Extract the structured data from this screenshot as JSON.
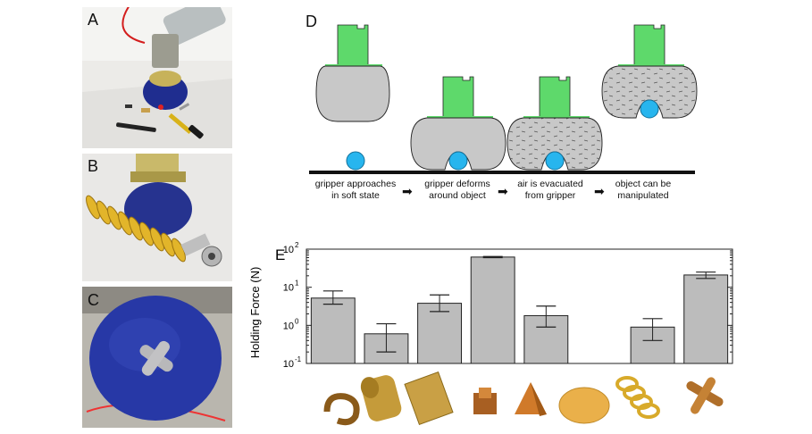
{
  "panels": {
    "a": "A",
    "b": "B",
    "c": "C",
    "d": "D",
    "e": "E"
  },
  "process_steps": [
    {
      "line1": "gripper approaches",
      "line2": "in soft state"
    },
    {
      "line1": "gripper deforms",
      "line2": "around object"
    },
    {
      "line1": "air is evacuated",
      "line2": "from gripper"
    },
    {
      "line1": "object can be",
      "line2": "manipulated"
    }
  ],
  "colors": {
    "gripper_gray": "#c8c8c8",
    "gripper_green": "#5ed96b",
    "object_blue": "#27b5ee",
    "balloon_blue": "#2a3aa0",
    "spring_yellow": "#e3b92a",
    "bar_gray": "#bcbcbc"
  },
  "chart_data": {
    "type": "bar",
    "ylabel": "Holding Force (N)",
    "yscale": "log",
    "ylim": [
      0.1,
      100
    ],
    "yticks": [
      "10",
      "10",
      "10",
      "10"
    ],
    "ytick_exponents": [
      "-1",
      "0",
      "1",
      "2"
    ],
    "series": [
      {
        "values": [
          5.2,
          0.6,
          3.8,
          62,
          1.8,
          null,
          0.9,
          21
        ],
        "error_low": [
          3.6,
          0.2,
          2.3,
          60,
          0.9,
          null,
          0.4,
          17
        ],
        "error_high": [
          8,
          1.1,
          6.3,
          64,
          3.2,
          null,
          1.5,
          25
        ]
      }
    ],
    "object_icons": [
      "coil",
      "cylinder",
      "block",
      "cube",
      "pyramid",
      "disc",
      "spring",
      "cross"
    ]
  }
}
